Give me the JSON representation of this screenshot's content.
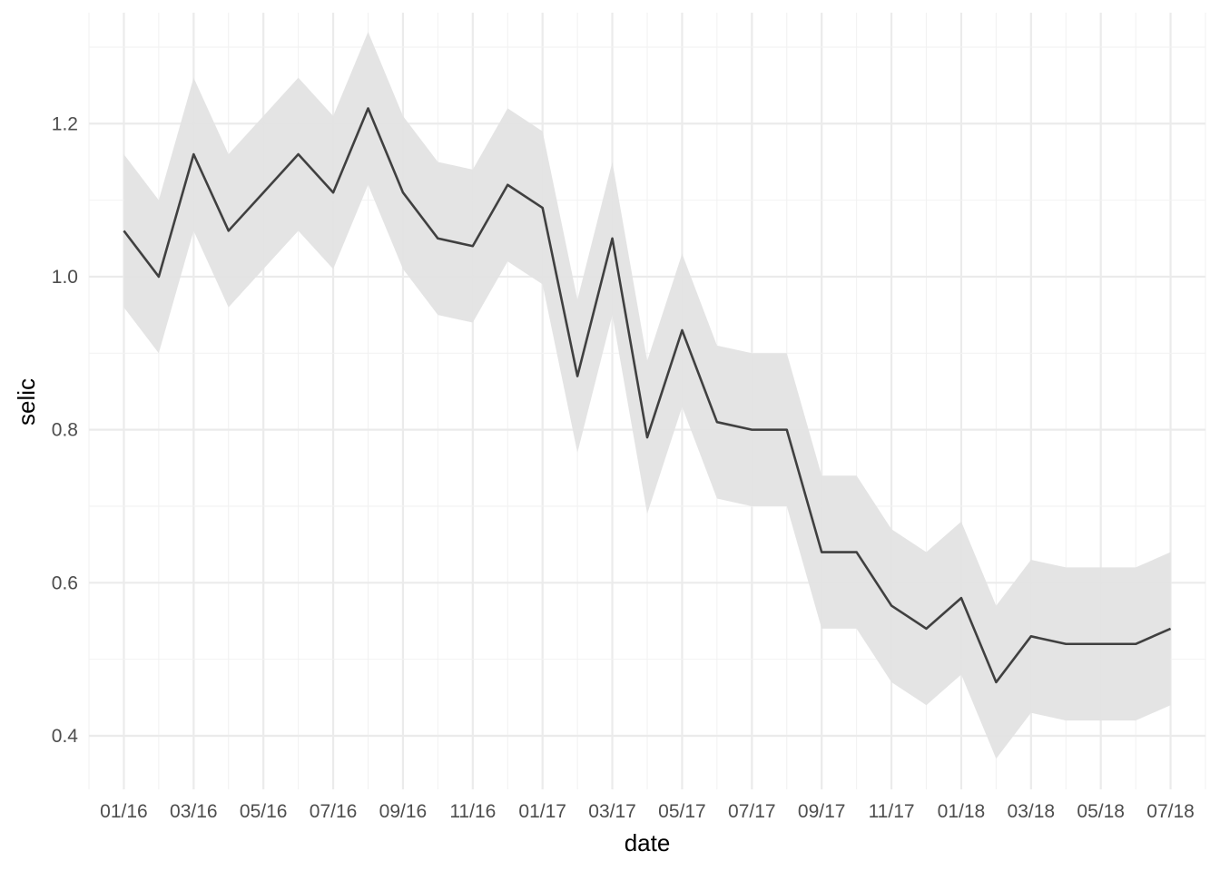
{
  "chart_data": {
    "type": "line",
    "title": "",
    "xlabel": "date",
    "ylabel": "selic",
    "x_tick_labels": [
      "01/16",
      "03/16",
      "05/16",
      "07/16",
      "09/16",
      "11/16",
      "01/17",
      "03/17",
      "05/17",
      "07/17",
      "09/17",
      "11/17",
      "01/18",
      "03/18",
      "05/18",
      "07/18"
    ],
    "y_tick_labels": [
      "0.4",
      "0.6",
      "0.8",
      "1.0",
      "1.2"
    ],
    "y_ticks": [
      0.4,
      0.6,
      0.8,
      1.0,
      1.2
    ],
    "ylim": [
      0.33,
      1.345
    ],
    "xlim": [
      "2015-12",
      "2018-08"
    ],
    "grid": true,
    "legend": "none",
    "series": [
      {
        "x": [
          "2016-01",
          "2016-02",
          "2016-03",
          "2016-04",
          "2016-05",
          "2016-06",
          "2016-07",
          "2016-08",
          "2016-09",
          "2016-10",
          "2016-11",
          "2016-12",
          "2017-01",
          "2017-02",
          "2017-03",
          "2017-04",
          "2017-05",
          "2017-06",
          "2017-07",
          "2017-08",
          "2017-09",
          "2017-10",
          "2017-11",
          "2017-12",
          "2018-01",
          "2018-02",
          "2018-03",
          "2018-04",
          "2018-05",
          "2018-06",
          "2018-07"
        ],
        "values": [
          1.06,
          1.0,
          1.16,
          1.06,
          1.11,
          1.16,
          1.11,
          1.22,
          1.11,
          1.05,
          1.04,
          1.12,
          1.09,
          0.87,
          1.05,
          0.79,
          0.93,
          0.81,
          0.8,
          0.8,
          0.64,
          0.64,
          0.57,
          0.54,
          0.58,
          0.47,
          0.53,
          0.52,
          0.52,
          0.52,
          0.54
        ],
        "lower": [
          0.96,
          0.9,
          1.06,
          0.96,
          1.01,
          1.06,
          1.01,
          1.12,
          1.01,
          0.95,
          0.94,
          1.02,
          0.99,
          0.77,
          0.95,
          0.69,
          0.83,
          0.71,
          0.7,
          0.7,
          0.54,
          0.54,
          0.47,
          0.44,
          0.48,
          0.37,
          0.43,
          0.42,
          0.42,
          0.42,
          0.44
        ],
        "upper": [
          1.16,
          1.1,
          1.26,
          1.16,
          1.21,
          1.26,
          1.21,
          1.32,
          1.21,
          1.15,
          1.14,
          1.22,
          1.19,
          0.97,
          1.15,
          0.89,
          1.03,
          0.91,
          0.9,
          0.9,
          0.74,
          0.74,
          0.67,
          0.64,
          0.68,
          0.57,
          0.63,
          0.62,
          0.62,
          0.62,
          0.64
        ]
      }
    ],
    "colors": {
      "line": "#404040",
      "ribbon": "#e3e3e3",
      "grid_major": "#ebebeb",
      "grid_minor": "#f2f2f2",
      "background": "#ffffff"
    }
  }
}
